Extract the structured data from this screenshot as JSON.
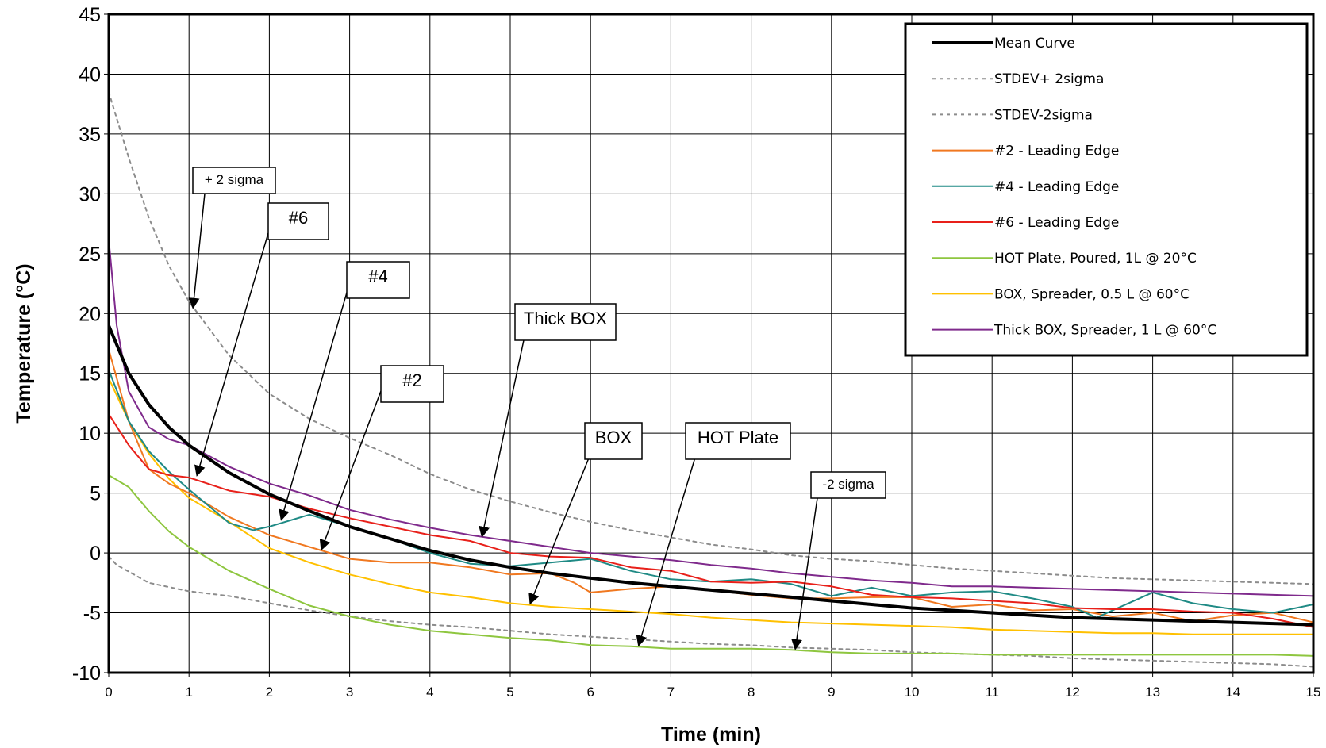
{
  "chart_data": {
    "type": "line",
    "xlabel": "Time (min)",
    "ylabel": "Temperature (°C)",
    "xlim": [
      0,
      15
    ],
    "ylim": [
      -10,
      45
    ],
    "xticks": [
      "0",
      "1",
      "2",
      "3",
      "4",
      "5",
      "6",
      "7",
      "8",
      "9",
      "10",
      "11",
      "12",
      "13",
      "14",
      "15"
    ],
    "yticks": [
      "-10",
      "-5",
      "0",
      "5",
      "10",
      "15",
      "20",
      "25",
      "30",
      "35",
      "40",
      "45"
    ],
    "grid": true,
    "legend_position": "top-right",
    "series": [
      {
        "name": "Mean Curve",
        "color": "#000000",
        "dash": "solid",
        "width": 4,
        "x": [
          0,
          0.25,
          0.5,
          0.75,
          1,
          1.5,
          2,
          2.5,
          3,
          3.5,
          4,
          4.5,
          5,
          5.5,
          6,
          6.5,
          7,
          7.5,
          8,
          8.5,
          9,
          9.5,
          10,
          10.5,
          11,
          11.5,
          12,
          12.5,
          13,
          13.5,
          14,
          14.5,
          15
        ],
        "y": [
          19,
          15,
          12.4,
          10.5,
          9,
          6.7,
          4.9,
          3.5,
          2.2,
          1.2,
          0.2,
          -0.6,
          -1.2,
          -1.7,
          -2.1,
          -2.5,
          -2.8,
          -3.1,
          -3.4,
          -3.7,
          -4,
          -4.3,
          -4.6,
          -4.8,
          -5,
          -5.2,
          -5.4,
          -5.5,
          -5.6,
          -5.7,
          -5.8,
          -5.9,
          -6
        ]
      },
      {
        "name": "STDEV+ 2sigma",
        "color": "#8c8c8c",
        "dash": "dotted",
        "width": 2,
        "x": [
          0,
          0.25,
          0.5,
          0.75,
          1,
          1.5,
          2,
          2.5,
          3,
          3.5,
          4,
          4.5,
          5,
          5.5,
          6,
          6.5,
          7,
          7.5,
          8,
          8.5,
          9,
          9.5,
          10,
          10.5,
          11,
          11.5,
          12,
          12.5,
          13,
          13.5,
          14,
          14.5,
          15
        ],
        "y": [
          38.5,
          33,
          28,
          24,
          21,
          16.5,
          13.3,
          11.2,
          9.6,
          8.2,
          6.6,
          5.3,
          4.3,
          3.4,
          2.6,
          1.9,
          1.3,
          0.7,
          0.3,
          -0.2,
          -0.5,
          -0.7,
          -1,
          -1.3,
          -1.5,
          -1.7,
          -1.9,
          -2.1,
          -2.2,
          -2.3,
          -2.4,
          -2.5,
          -2.6
        ]
      },
      {
        "name": "STDEV-2sigma",
        "color": "#8c8c8c",
        "dash": "dotted",
        "width": 2,
        "x": [
          0,
          0.1,
          0.5,
          1,
          1.5,
          2,
          2.5,
          3,
          3.5,
          4,
          4.5,
          5,
          5.5,
          6,
          6.5,
          7,
          7.5,
          8,
          8.5,
          9,
          9.5,
          10,
          10.5,
          11,
          11.5,
          12,
          12.5,
          13,
          13.5,
          14,
          14.5,
          15
        ],
        "y": [
          -0.3,
          -1,
          -2.5,
          -3.2,
          -3.6,
          -4.2,
          -4.8,
          -5.3,
          -5.7,
          -6,
          -6.2,
          -6.5,
          -6.8,
          -7,
          -7.2,
          -7.4,
          -7.6,
          -7.7,
          -7.9,
          -8,
          -8.1,
          -8.3,
          -8.4,
          -8.5,
          -8.6,
          -8.8,
          -8.9,
          -9,
          -9.1,
          -9.2,
          -9.3,
          -9.5
        ]
      },
      {
        "name": "#2 - Leading Edge",
        "color": "#f07820",
        "dash": "solid",
        "width": 2,
        "x": [
          0,
          0.25,
          0.5,
          0.75,
          1,
          1.5,
          2,
          2.5,
          3,
          3.5,
          4,
          4.5,
          5,
          5.5,
          5.8,
          6,
          6.5,
          7,
          7.5,
          8,
          8.5,
          9,
          9.5,
          10,
          10.5,
          11,
          11.5,
          12,
          12.5,
          13,
          13.5,
          14,
          14.5,
          15
        ],
        "y": [
          17,
          11,
          7,
          5.8,
          5,
          3,
          1.5,
          0.5,
          -0.5,
          -0.8,
          -0.8,
          -1.2,
          -1.8,
          -1.7,
          -2.5,
          -3.3,
          -3,
          -2.8,
          -3.1,
          -3.5,
          -3.8,
          -3.8,
          -3.7,
          -3.7,
          -4.5,
          -4.3,
          -4.8,
          -4.7,
          -5.3,
          -5,
          -5.7,
          -5.2,
          -5,
          -5.8
        ]
      },
      {
        "name": "#4 - Leading Edge",
        "color": "#1f8a85",
        "dash": "solid",
        "width": 2,
        "x": [
          0,
          0.25,
          0.5,
          0.75,
          1,
          1.5,
          1.8,
          2,
          2.5,
          3,
          3.5,
          4,
          4.5,
          5,
          5.5,
          6,
          6.5,
          7,
          7.5,
          8,
          8.5,
          9,
          9.5,
          10,
          10.5,
          11,
          11.5,
          12,
          12.3,
          12.6,
          13,
          13.5,
          14,
          14.5,
          15
        ],
        "y": [
          15.3,
          11,
          8.5,
          6.8,
          5.3,
          2.5,
          1.9,
          2.2,
          3.2,
          2.2,
          1.2,
          0,
          -0.9,
          -1.1,
          -0.8,
          -0.5,
          -1.5,
          -2.2,
          -2.4,
          -2.2,
          -2.6,
          -3.6,
          -2.9,
          -3.6,
          -3.3,
          -3.2,
          -3.8,
          -4.5,
          -5.4,
          -4.5,
          -3.3,
          -4.2,
          -4.7,
          -5,
          -4.3
        ]
      },
      {
        "name": "#6 - Leading Edge",
        "color": "#e8201a",
        "dash": "solid",
        "width": 2,
        "x": [
          0,
          0.25,
          0.5,
          0.75,
          1,
          1.5,
          2,
          2.5,
          3,
          3.5,
          4,
          4.5,
          5,
          5.5,
          6,
          6.5,
          7,
          7.5,
          8,
          8.5,
          9,
          9.5,
          10,
          10.5,
          11,
          11.5,
          12,
          12.5,
          13,
          13.5,
          14,
          14.5,
          15
        ],
        "y": [
          11.6,
          9,
          7,
          6.5,
          6.3,
          5.2,
          4.7,
          3.7,
          2.9,
          2.2,
          1.5,
          1,
          0,
          -0.3,
          -0.4,
          -1.2,
          -1.5,
          -2.4,
          -2.5,
          -2.4,
          -2.8,
          -3.5,
          -3.7,
          -3.8,
          -4,
          -4.2,
          -4.6,
          -4.7,
          -4.7,
          -4.9,
          -5,
          -5.5,
          -6.2
        ]
      },
      {
        "name": "HOT Plate, Poured, 1L @ 20°C",
        "color": "#8ec63f",
        "dash": "solid",
        "width": 2,
        "x": [
          0,
          0.25,
          0.5,
          0.75,
          1,
          1.5,
          2,
          2.5,
          3,
          3.5,
          4,
          4.5,
          5,
          5.5,
          6,
          6.5,
          7,
          7.5,
          8,
          8.5,
          9,
          9.5,
          10,
          10.5,
          11,
          11.5,
          12,
          12.5,
          13,
          13.5,
          14,
          14.5,
          15
        ],
        "y": [
          6.5,
          5.5,
          3.5,
          1.8,
          0.5,
          -1.5,
          -3,
          -4.4,
          -5.3,
          -6,
          -6.5,
          -6.8,
          -7.1,
          -7.3,
          -7.7,
          -7.8,
          -8,
          -8,
          -8,
          -8.1,
          -8.3,
          -8.4,
          -8.4,
          -8.4,
          -8.5,
          -8.5,
          -8.5,
          -8.5,
          -8.5,
          -8.5,
          -8.5,
          -8.5,
          -8.6
        ]
      },
      {
        "name": "BOX, Spreader, 0.5 L @ 60°C",
        "color": "#ffc000",
        "dash": "solid",
        "width": 2,
        "x": [
          0,
          0.25,
          0.5,
          0.75,
          1,
          1.5,
          2,
          2.5,
          3,
          3.5,
          4,
          4.5,
          5,
          5.5,
          6,
          6.5,
          7,
          7.5,
          8,
          8.5,
          9,
          9.5,
          10,
          10.5,
          11,
          11.5,
          12,
          12.5,
          13,
          13.5,
          14,
          14.5,
          15
        ],
        "y": [
          14.6,
          11,
          8.3,
          6.2,
          4.6,
          2.6,
          0.4,
          -0.8,
          -1.8,
          -2.6,
          -3.3,
          -3.7,
          -4.2,
          -4.5,
          -4.7,
          -4.9,
          -5.1,
          -5.4,
          -5.6,
          -5.8,
          -5.9,
          -6,
          -6.1,
          -6.2,
          -6.4,
          -6.5,
          -6.6,
          -6.7,
          -6.7,
          -6.8,
          -6.8,
          -6.8,
          -6.8
        ]
      },
      {
        "name": "Thick BOX, Spreader, 1 L @ 60°C",
        "color": "#7f2a8c",
        "dash": "solid",
        "width": 2,
        "x": [
          0,
          0.1,
          0.25,
          0.5,
          0.75,
          1,
          1.5,
          2,
          2.5,
          3,
          3.5,
          4,
          4.5,
          5,
          5.5,
          6,
          6.5,
          7,
          7.5,
          8,
          8.5,
          9,
          9.5,
          10,
          10.5,
          11,
          11.5,
          12,
          12.5,
          13,
          13.5,
          14,
          14.5,
          15
        ],
        "y": [
          26.2,
          19,
          13.5,
          10.5,
          9.5,
          9,
          7.2,
          5.8,
          4.8,
          3.6,
          2.8,
          2.1,
          1.5,
          1,
          0.5,
          0,
          -0.3,
          -0.6,
          -1,
          -1.3,
          -1.7,
          -2,
          -2.3,
          -2.5,
          -2.8,
          -2.8,
          -2.9,
          -3,
          -3.1,
          -3.2,
          -3.3,
          -3.4,
          -3.5,
          -3.6
        ]
      }
    ],
    "annotations": [
      {
        "label": "+ 2 sigma",
        "arrow_to": [
          1.05,
          20.5
        ]
      },
      {
        "label": "#6",
        "arrow_to": [
          1.1,
          6.5
        ]
      },
      {
        "label": "#4",
        "arrow_to": [
          2.15,
          2.8
        ]
      },
      {
        "label": "#2",
        "arrow_to": [
          2.65,
          0.3
        ]
      },
      {
        "label": "Thick BOX",
        "arrow_to": [
          4.65,
          1.4
        ]
      },
      {
        "label": "BOX",
        "arrow_to": [
          5.25,
          -4.2
        ]
      },
      {
        "label": "HOT Plate",
        "arrow_to": [
          6.6,
          -7.7
        ]
      },
      {
        "label": "-2 sigma",
        "arrow_to": [
          8.55,
          -8.0
        ]
      }
    ]
  }
}
